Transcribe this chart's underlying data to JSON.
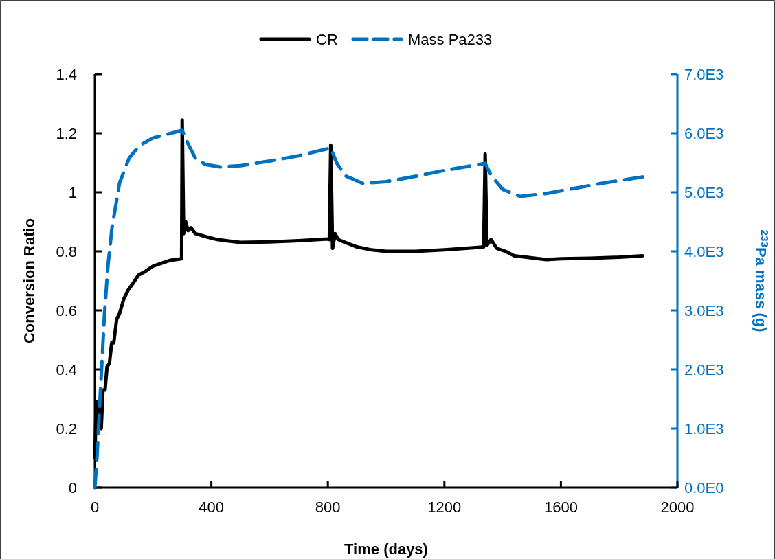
{
  "chart_data": {
    "type": "line",
    "xlabel": "Time (days)",
    "ylabel": "Conversion Ratio",
    "y2label": "$^{233}$Pa mass (g)",
    "xlim": [
      0,
      2000
    ],
    "xticks": [
      0,
      400,
      800,
      1200,
      1600,
      2000
    ],
    "ylim": [
      0,
      1.4
    ],
    "yticks": [
      0,
      0.2,
      0.4,
      0.6,
      0.8,
      1,
      1.2,
      1.4
    ],
    "y2lim": [
      0,
      7000
    ],
    "y2ticks": [
      {
        "value": 0,
        "label": "0.0E0"
      },
      {
        "value": 1000,
        "label": "1.0E3"
      },
      {
        "value": 2000,
        "label": "2.0E3"
      },
      {
        "value": 3000,
        "label": "3.0E3"
      },
      {
        "value": 4000,
        "label": "4.0E3"
      },
      {
        "value": 5000,
        "label": "5.0E3"
      },
      {
        "value": 6000,
        "label": "6.0E3"
      },
      {
        "value": 7000,
        "label": "7.0E3"
      }
    ],
    "legend": "top",
    "grid": false,
    "series": [
      {
        "name": "CR",
        "color": "#000000",
        "line_style": "solid",
        "x": [
          0,
          5,
          10,
          15,
          22,
          28,
          35,
          42,
          50,
          58,
          65,
          75,
          85,
          100,
          115,
          130,
          150,
          170,
          200,
          230,
          260,
          298,
          300,
          305,
          312,
          320,
          330,
          345,
          380,
          420,
          460,
          500,
          600,
          700,
          800,
          805,
          810,
          816,
          825,
          835,
          860,
          900,
          950,
          1000,
          1100,
          1200,
          1300,
          1335,
          1340,
          1346,
          1360,
          1380,
          1410,
          1440,
          1500,
          1550,
          1600,
          1700,
          1800,
          1880
        ],
        "values": [
          0.1,
          0.29,
          0.22,
          0.29,
          0.2,
          0.33,
          0.33,
          0.41,
          0.42,
          0.49,
          0.49,
          0.57,
          0.59,
          0.64,
          0.67,
          0.69,
          0.72,
          0.73,
          0.75,
          0.76,
          0.77,
          0.775,
          1.245,
          0.86,
          0.9,
          0.87,
          0.88,
          0.86,
          0.85,
          0.84,
          0.835,
          0.83,
          0.832,
          0.836,
          0.842,
          0.84,
          1.16,
          0.81,
          0.86,
          0.84,
          0.83,
          0.815,
          0.805,
          0.8,
          0.8,
          0.805,
          0.812,
          0.815,
          1.13,
          0.82,
          0.84,
          0.81,
          0.8,
          0.785,
          0.778,
          0.772,
          0.775,
          0.777,
          0.78,
          0.785
        ]
      },
      {
        "name": "Mass Pa233",
        "color": "#0070c0",
        "line_style": "dashed",
        "axis": "y2",
        "x": [
          0,
          7,
          20,
          33,
          45,
          59,
          85,
          118,
          153,
          200,
          238,
          300,
          320,
          345,
          380,
          430,
          500,
          600,
          700,
          810,
          830,
          860,
          920,
          1000,
          1100,
          1200,
          1340,
          1360,
          1400,
          1460,
          1550,
          1650,
          1750,
          1880
        ],
        "values": [
          0,
          470,
          1700,
          2920,
          3750,
          4400,
          5160,
          5580,
          5790,
          5920,
          5970,
          6050,
          5820,
          5580,
          5470,
          5430,
          5450,
          5530,
          5620,
          5750,
          5500,
          5280,
          5150,
          5180,
          5270,
          5370,
          5490,
          5290,
          5050,
          4930,
          4980,
          5070,
          5160,
          5260
        ]
      }
    ]
  }
}
